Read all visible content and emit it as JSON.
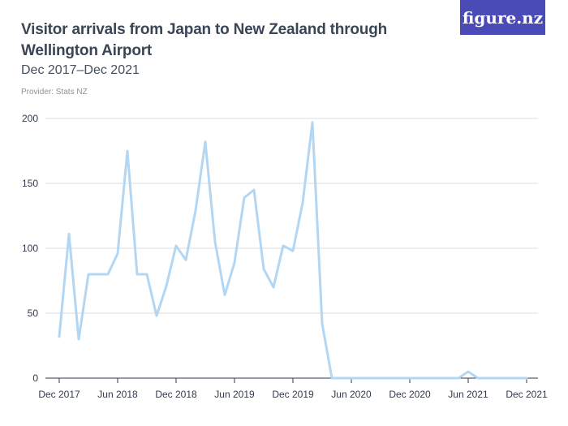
{
  "header": {
    "title": "Visitor arrivals from Japan to New Zealand through Wellington Airport",
    "subtitle": "Dec 2017–Dec 2021",
    "provider": "Provider: Stats NZ",
    "brand": "figure.nz"
  },
  "colors": {
    "line": "#b3d6f2",
    "grid": "#d9dde3",
    "axis": "#2e3a4f",
    "brand_bg": "#4b4bb8"
  },
  "chart_data": {
    "type": "line",
    "title": "Visitor arrivals from Japan to New Zealand through Wellington Airport",
    "subtitle": "Dec 2017–Dec 2021",
    "xlabel": "",
    "ylabel": "",
    "ylim": [
      0,
      200
    ],
    "y_ticks": [
      0,
      50,
      100,
      150,
      200
    ],
    "x_tick_labels": [
      "Dec 2017",
      "Jun 2018",
      "Dec 2018",
      "Jun 2019",
      "Dec 2019",
      "Jun 2020",
      "Dec 2020",
      "Jun 2021",
      "Dec 2021"
    ],
    "grid": true,
    "series": [
      {
        "x": [
          "Dec 2017",
          "Jan 2018",
          "Feb 2018",
          "Mar 2018",
          "Apr 2018",
          "May 2018",
          "Jun 2018",
          "Jul 2018",
          "Aug 2018",
          "Sep 2018",
          "Oct 2018",
          "Nov 2018",
          "Dec 2018",
          "Jan 2019",
          "Feb 2019",
          "Mar 2019",
          "Apr 2019",
          "May 2019",
          "Jun 2019",
          "Jul 2019",
          "Aug 2019",
          "Sep 2019",
          "Oct 2019",
          "Nov 2019",
          "Dec 2019",
          "Jan 2020",
          "Feb 2020",
          "Mar 2020",
          "Apr 2020",
          "May 2020",
          "Jun 2020",
          "Jul 2020",
          "Aug 2020",
          "Sep 2020",
          "Oct 2020",
          "Nov 2020",
          "Dec 2020",
          "Jan 2021",
          "Feb 2021",
          "Mar 2021",
          "Apr 2021",
          "May 2021",
          "Jun 2021",
          "Jul 2021",
          "Aug 2021",
          "Sep 2021",
          "Oct 2021",
          "Nov 2021",
          "Dec 2021"
        ],
        "values": [
          32,
          111,
          30,
          80,
          80,
          80,
          96,
          175,
          80,
          80,
          48,
          71,
          102,
          91,
          129,
          182,
          105,
          64,
          89,
          139,
          145,
          84,
          70,
          102,
          98,
          135,
          197,
          42,
          0,
          0,
          0,
          0,
          0,
          0,
          0,
          0,
          0,
          0,
          0,
          0,
          0,
          0,
          5,
          0,
          0,
          0,
          0,
          0,
          0
        ]
      }
    ]
  }
}
